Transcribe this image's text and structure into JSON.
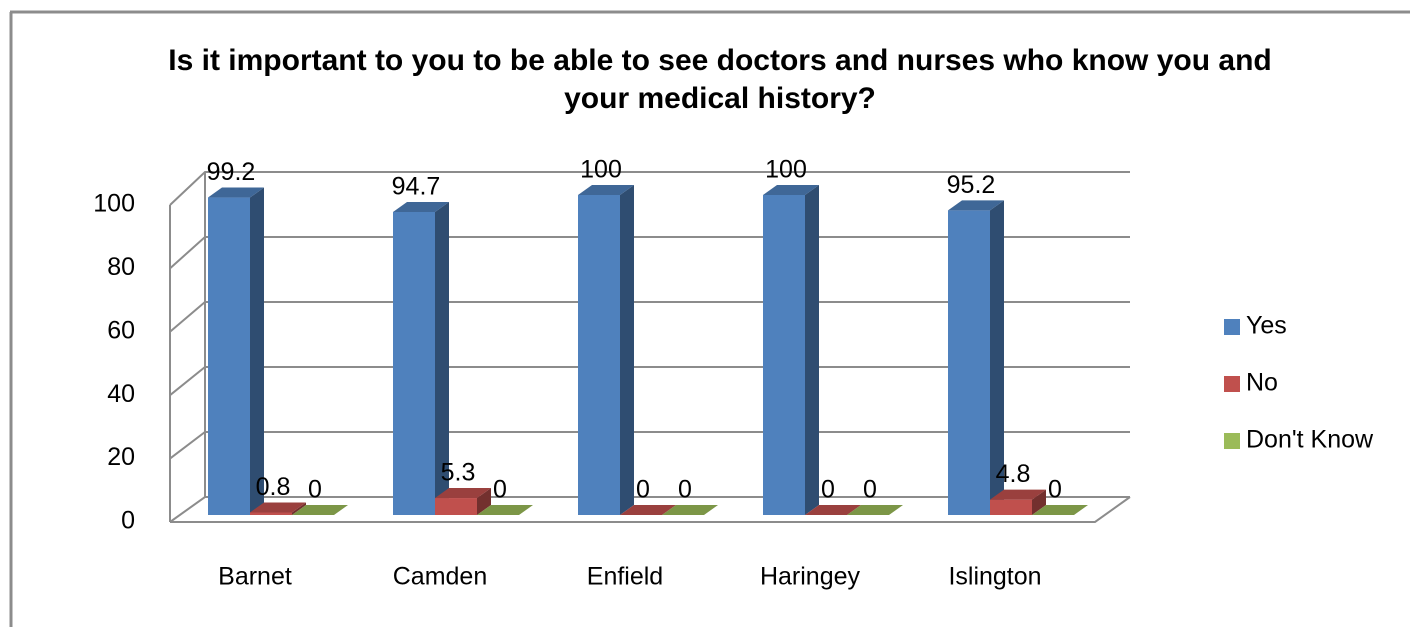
{
  "chart_data": {
    "type": "bar3d",
    "title": "Is it important to you to be able to see doctors and nurses who know you and your medical history?",
    "categories": [
      "Barnet",
      "Camden",
      "Enfield",
      "Haringey",
      "Islington"
    ],
    "series": [
      {
        "name": "Yes",
        "color": "#4f81bd",
        "values": [
          99.2,
          94.7,
          100,
          100,
          95.2
        ]
      },
      {
        "name": "No",
        "color": "#c0504d",
        "values": [
          0.8,
          5.3,
          0,
          0,
          4.8
        ]
      },
      {
        "name": "Don't Know",
        "color": "#9bbb59",
        "values": [
          0,
          0,
          0,
          0,
          0
        ]
      }
    ],
    "ylim": [
      0,
      100
    ],
    "yticks": [
      0,
      20,
      40,
      60,
      80,
      100
    ],
    "grid": true,
    "legend": "right"
  }
}
